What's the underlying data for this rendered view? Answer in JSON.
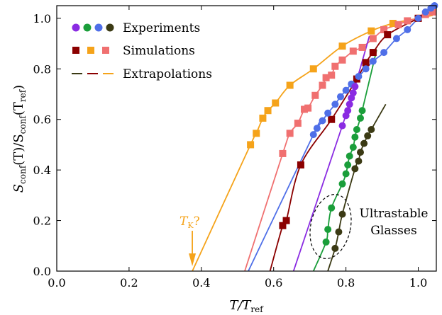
{
  "chart_data": {
    "type": "scatter",
    "xlabel_main": "T/T",
    "xlabel_sub": "ref",
    "ylabel_main": "S",
    "ylabel_sub1": "conf",
    "ylabel_mid": "(T)/S",
    "ylabel_sub2": "conf",
    "ylabel_end": "(T",
    "ylabel_sub3": "ref",
    "ylabel_close": ")",
    "xlim": [
      0.0,
      1.05
    ],
    "ylim": [
      0.0,
      1.05
    ],
    "xticks": [
      "0.0",
      "0.2",
      "0.4",
      "0.6",
      "0.8",
      "1.0"
    ],
    "yticks": [
      "0.0",
      "0.2",
      "0.4",
      "0.6",
      "0.8",
      "1.0"
    ],
    "legend": {
      "placement": "top-left",
      "entries": [
        {
          "label": "Experiments",
          "marker": "circle",
          "colors": [
            "#8a2be2",
            "#1a9e3a",
            "#4f6fe8",
            "#3b3a14"
          ]
        },
        {
          "label": "Simulations",
          "marker": "square",
          "colors": [
            "#8b0000",
            "#f5a31a",
            "#f07070"
          ]
        },
        {
          "label": "Extrapolations",
          "marker": "dash",
          "colors": [
            "#3b3a14",
            "#8b0000",
            "#f5a31a"
          ]
        }
      ]
    },
    "annotations": {
      "tk_main": "T",
      "tk_sub": "K",
      "tk_q": "?",
      "tk_x": 0.375,
      "ultrastable_line1": "Ultrastable",
      "ultrastable_line2": "Glasses"
    },
    "series": [
      {
        "kind": "simulation",
        "color": "#f5a31a",
        "x0": 0.375,
        "points": [
          [
            0.536,
            0.5
          ],
          [
            0.552,
            0.545
          ],
          [
            0.57,
            0.605
          ],
          [
            0.584,
            0.635
          ],
          [
            0.605,
            0.665
          ],
          [
            0.645,
            0.735
          ],
          [
            0.71,
            0.8
          ],
          [
            0.79,
            0.89
          ],
          [
            0.87,
            0.95
          ],
          [
            0.93,
            0.98
          ],
          [
            1.0,
            1.0
          ]
        ]
      },
      {
        "kind": "simulation",
        "color": "#f07070",
        "x0": 0.52,
        "points": [
          [
            0.625,
            0.465
          ],
          [
            0.645,
            0.545
          ],
          [
            0.667,
            0.585
          ],
          [
            0.685,
            0.64
          ],
          [
            0.695,
            0.645
          ],
          [
            0.715,
            0.695
          ],
          [
            0.735,
            0.735
          ],
          [
            0.745,
            0.765
          ],
          [
            0.76,
            0.775
          ],
          [
            0.77,
            0.81
          ],
          [
            0.79,
            0.835
          ],
          [
            0.82,
            0.87
          ],
          [
            0.845,
            0.885
          ],
          [
            0.875,
            0.92
          ],
          [
            0.905,
            0.955
          ],
          [
            0.945,
            0.975
          ],
          [
            0.97,
            0.99
          ],
          [
            1.0,
            1.0
          ],
          [
            1.02,
            1.015
          ],
          [
            1.04,
            1.025
          ]
        ]
      },
      {
        "kind": "simulation",
        "color": "#8b0000",
        "x0": 0.59,
        "points": [
          [
            0.625,
            0.18
          ],
          [
            0.635,
            0.2
          ],
          [
            0.675,
            0.42
          ],
          [
            0.76,
            0.6
          ],
          [
            0.83,
            0.76
          ],
          [
            0.855,
            0.825
          ],
          [
            0.875,
            0.865
          ],
          [
            0.915,
            0.935
          ],
          [
            1.0,
            1.0
          ]
        ]
      },
      {
        "kind": "experiment",
        "color": "#4f6fe8",
        "x0": 0.53,
        "points": [
          [
            0.71,
            0.54
          ],
          [
            0.72,
            0.565
          ],
          [
            0.735,
            0.595
          ],
          [
            0.75,
            0.625
          ],
          [
            0.77,
            0.66
          ],
          [
            0.785,
            0.69
          ],
          [
            0.8,
            0.715
          ],
          [
            0.815,
            0.74
          ],
          [
            0.835,
            0.77
          ],
          [
            0.855,
            0.8
          ],
          [
            0.875,
            0.83
          ],
          [
            0.905,
            0.865
          ],
          [
            0.94,
            0.92
          ],
          [
            0.97,
            0.955
          ],
          [
            1.0,
            1.0
          ],
          [
            1.02,
            1.025
          ],
          [
            1.035,
            1.04
          ],
          [
            1.045,
            1.05
          ]
        ]
      },
      {
        "kind": "experiment",
        "color": "#8a2be2",
        "x0": 0.655,
        "points": [
          [
            0.79,
            0.575
          ],
          [
            0.8,
            0.615
          ],
          [
            0.805,
            0.635
          ],
          [
            0.81,
            0.66
          ],
          [
            0.815,
            0.685
          ],
          [
            0.82,
            0.705
          ],
          [
            0.825,
            0.73
          ]
        ]
      },
      {
        "kind": "experiment",
        "color": "#1a9e3a",
        "x0": 0.71,
        "points": [
          [
            0.745,
            0.115
          ],
          [
            0.75,
            0.165
          ],
          [
            0.76,
            0.25
          ],
          [
            0.79,
            0.345
          ],
          [
            0.8,
            0.385
          ],
          [
            0.805,
            0.42
          ],
          [
            0.81,
            0.455
          ],
          [
            0.82,
            0.49
          ],
          [
            0.825,
            0.53
          ],
          [
            0.83,
            0.56
          ],
          [
            0.84,
            0.605
          ],
          [
            0.845,
            0.635
          ]
        ]
      },
      {
        "kind": "experiment",
        "color": "#3b3a14",
        "x0": 0.75,
        "points": [
          [
            0.77,
            0.09
          ],
          [
            0.78,
            0.155
          ],
          [
            0.79,
            0.225
          ],
          [
            0.825,
            0.405
          ],
          [
            0.835,
            0.435
          ],
          [
            0.84,
            0.47
          ],
          [
            0.85,
            0.505
          ],
          [
            0.86,
            0.535
          ],
          [
            0.87,
            0.56
          ]
        ]
      }
    ]
  }
}
